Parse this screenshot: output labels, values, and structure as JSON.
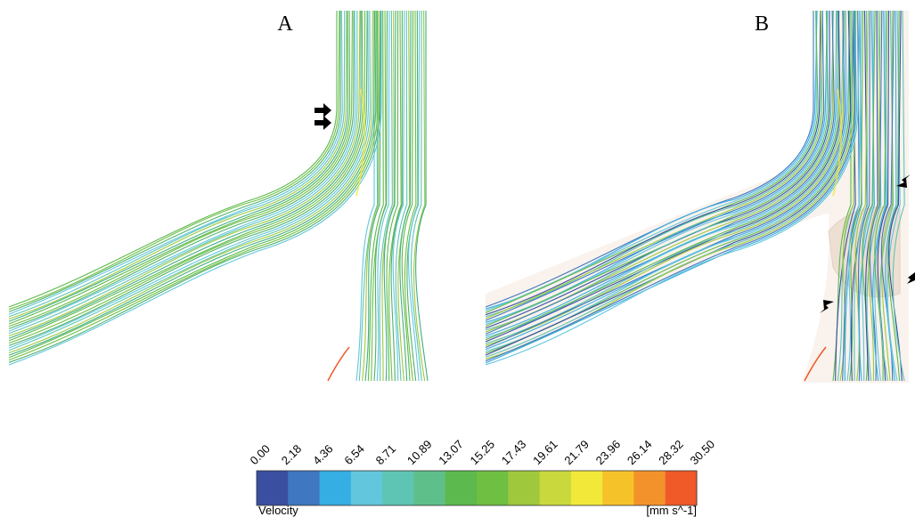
{
  "panels": [
    {
      "label": "A"
    },
    {
      "label": "B"
    }
  ],
  "colorbar": {
    "ticks": [
      "0.00",
      "2.18",
      "4.36",
      "6.54",
      "8.71",
      "10.89",
      "13.07",
      "15.25",
      "17.43",
      "19.61",
      "21.79",
      "23.96",
      "26.14",
      "28.32",
      "30.50"
    ],
    "colors": [
      "#3a4fa0",
      "#3f77c0",
      "#35aee3",
      "#62c6dd",
      "#5ec4b4",
      "#5fbf8a",
      "#5cb94d",
      "#6fbf42",
      "#9fc83c",
      "#c9d83c",
      "#f2e83a",
      "#f6c22a",
      "#f3922a",
      "#ef5a28"
    ],
    "title": "Velocity",
    "unit": "[mm s^-1]"
  }
}
